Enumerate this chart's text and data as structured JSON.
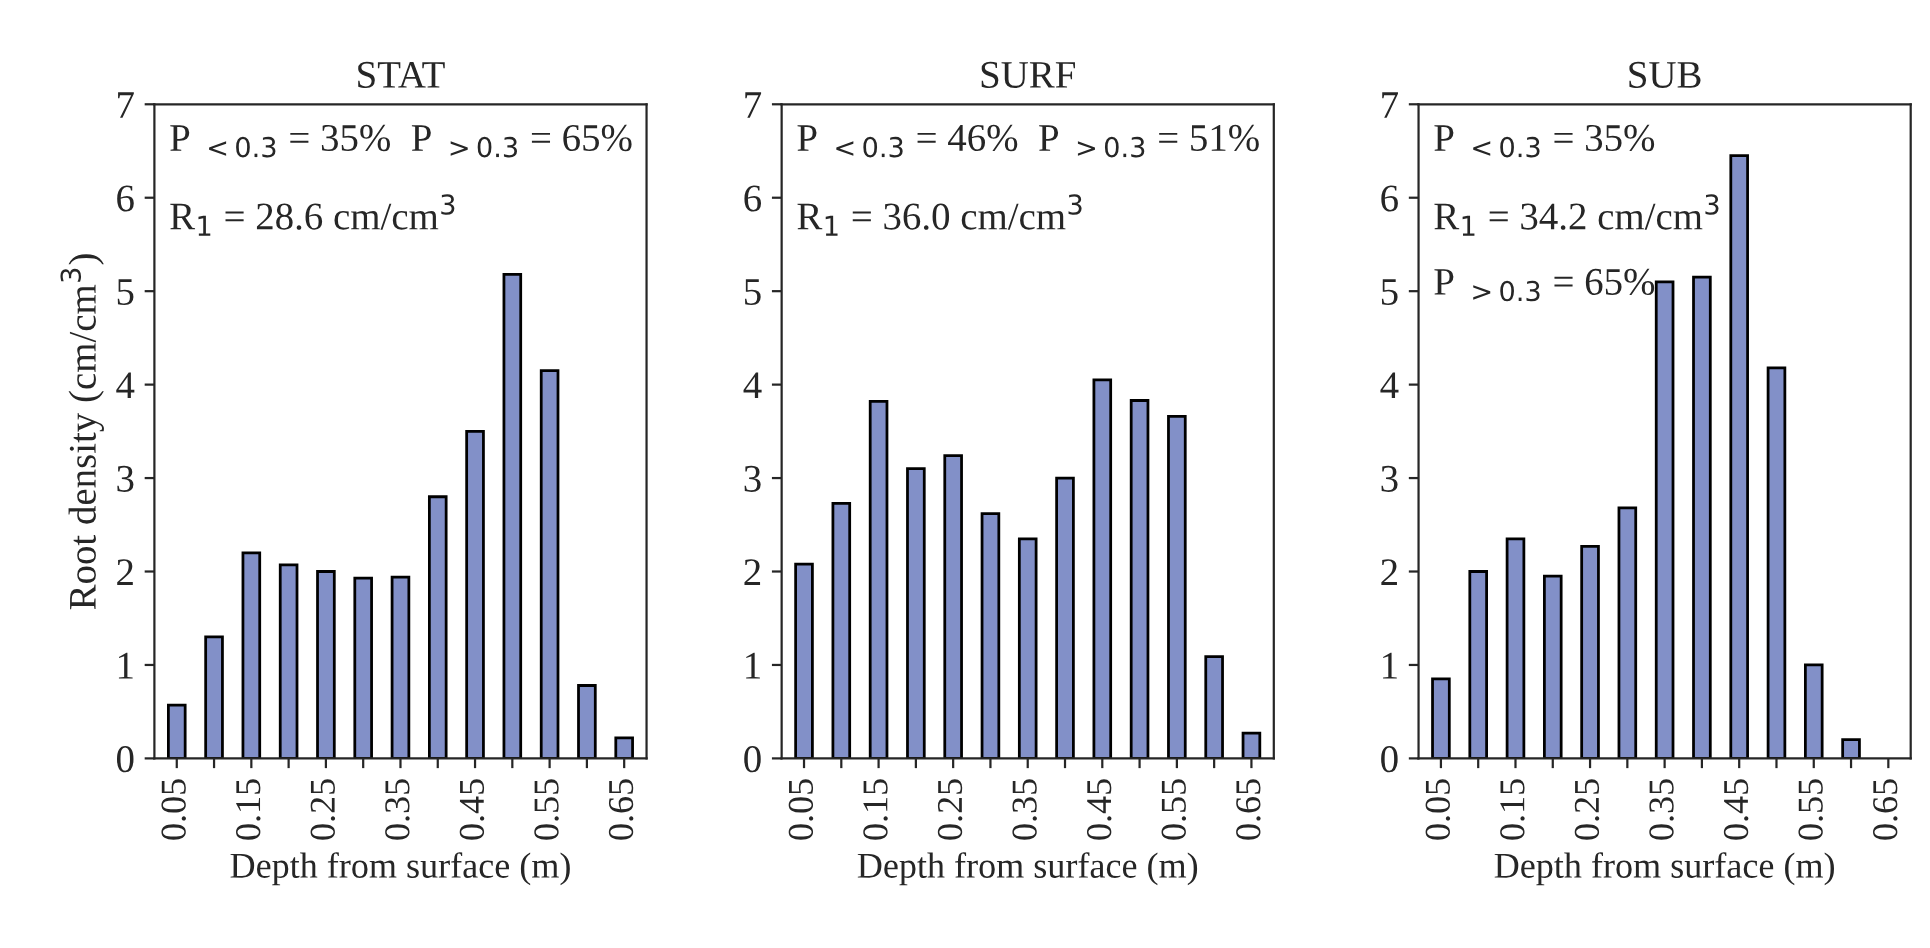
{
  "chart_data": [
    {
      "type": "bar",
      "title": "STAT",
      "xlabel": "Depth from surface (m)",
      "ylabel": "Root density (cm/cm$^{3}$)",
      "categories": [
        "0.05",
        null,
        "0.15",
        null,
        "0.25",
        null,
        "0.35",
        null,
        "0.45",
        null,
        "0.55",
        null,
        "0.65"
      ],
      "values": [
        0.57,
        1.3,
        2.2,
        2.07,
        2.0,
        1.93,
        1.94,
        2.8,
        3.5,
        5.18,
        4.15,
        0.78,
        0.22
      ],
      "color": "#8290c8",
      "ylim": [
        0,
        7
      ],
      "yticks": [
        0,
        1,
        2,
        3,
        4,
        5,
        6,
        7
      ],
      "grid": false,
      "annotations": [
        "P $_{<0.3}$ = 35%  P $_{>0.3}$ = 65%",
        "R$_{1}$ = 28.6 cm/cm$^{3}$"
      ]
    },
    {
      "type": "bar",
      "title": "SURF",
      "xlabel": "Depth from surface (m)",
      "categories": [
        "0.05",
        null,
        "0.15",
        null,
        "0.25",
        null,
        "0.35",
        null,
        "0.45",
        null,
        "0.55",
        null,
        "0.65"
      ],
      "values": [
        2.08,
        2.73,
        3.82,
        3.1,
        3.24,
        2.62,
        2.35,
        3.0,
        4.05,
        3.83,
        3.66,
        1.09,
        0.27
      ],
      "color": "#8290c8",
      "ylim": [
        0,
        7
      ],
      "yticks": [
        0,
        1,
        2,
        3,
        4,
        5,
        6,
        7
      ],
      "grid": false,
      "annotations": [
        "P $_{<0.3}$ = 46%  P $_{>0.3}$ = 51%",
        "R$_{1}$ = 36.0 cm/cm$^{3}$"
      ]
    },
    {
      "type": "bar",
      "title": "SUB",
      "xlabel": "Depth from surface (m)",
      "categories": [
        "0.05",
        null,
        "0.15",
        null,
        "0.25",
        null,
        "0.35",
        null,
        "0.45",
        null,
        "0.55",
        null,
        "0.65"
      ],
      "values": [
        0.85,
        2.0,
        2.35,
        1.95,
        2.27,
        2.68,
        5.1,
        5.15,
        6.45,
        4.18,
        1.0,
        0.2,
        null
      ],
      "color": "#8290c8",
      "ylim": [
        0,
        7
      ],
      "yticks": [
        0,
        1,
        2,
        3,
        4,
        5,
        6,
        7
      ],
      "grid": false,
      "annotations": [
        "P $_{<0.3}$ = 35%",
        "R$_{1}$ = 34.2 cm/cm$^{3}$",
        "P $_{>0.3}$ = 65%"
      ]
    }
  ]
}
